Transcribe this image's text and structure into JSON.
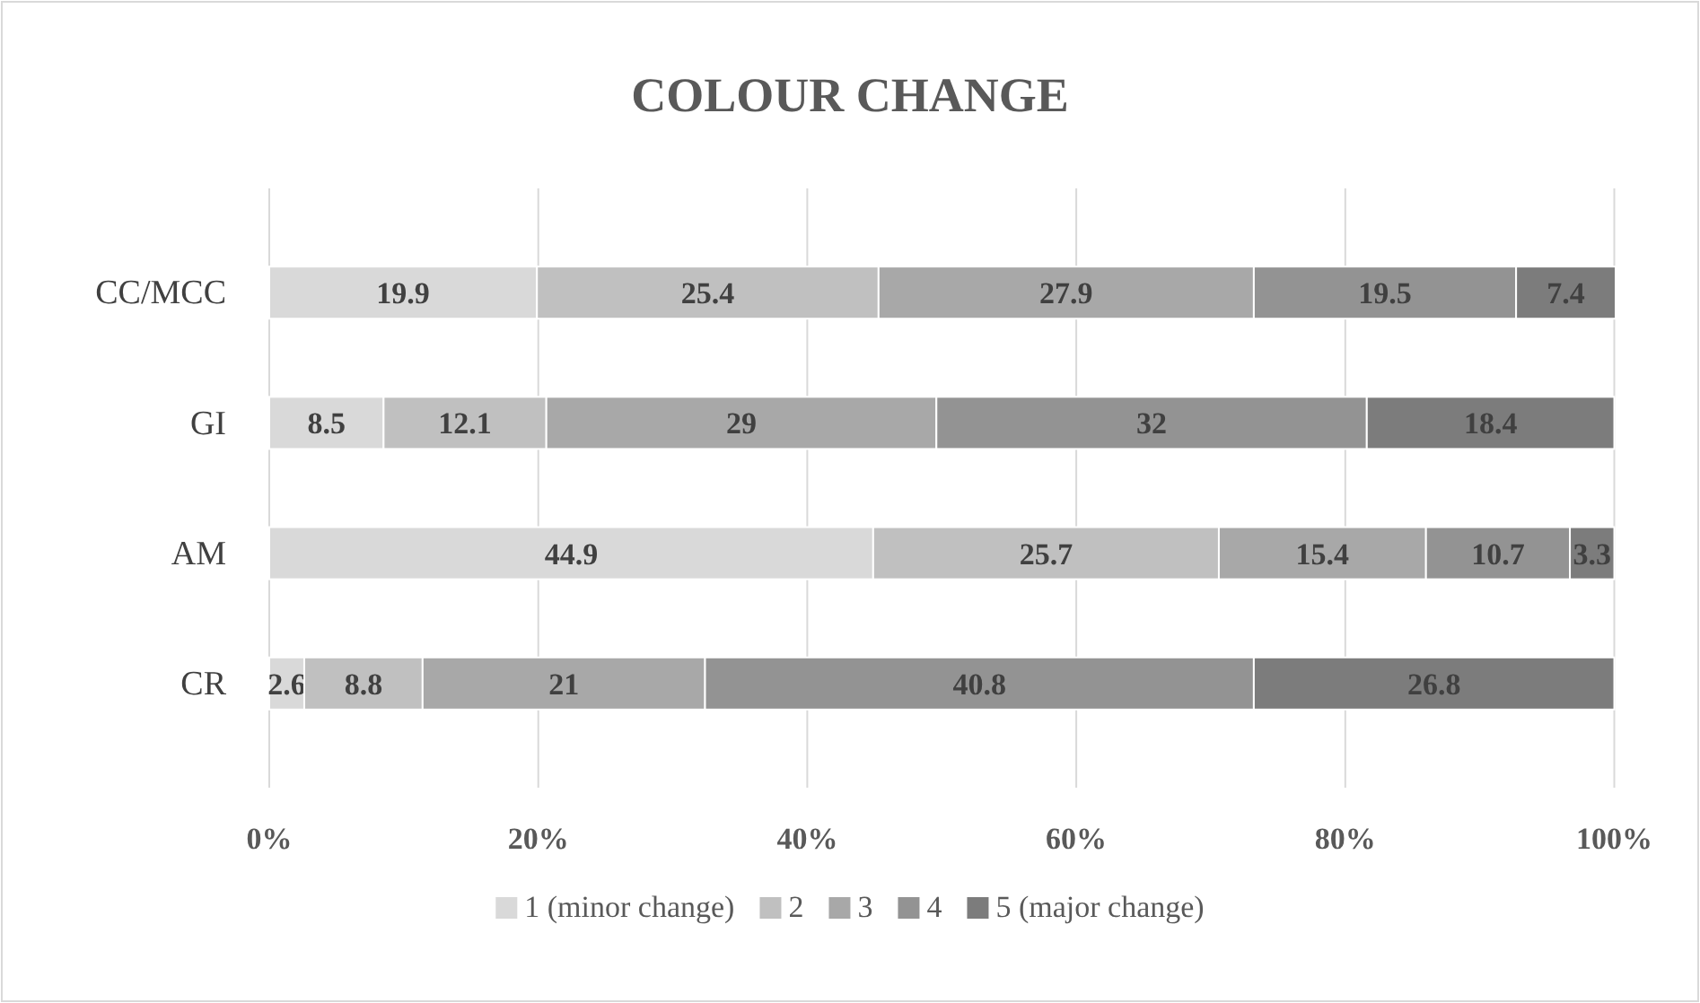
{
  "chart_data": {
    "type": "bar",
    "title": "COLOUR CHANGE",
    "orientation": "horizontal",
    "stacked": true,
    "categories": [
      "CC/MCC",
      "GI",
      "AM",
      "CR"
    ],
    "series": [
      {
        "name": "1 (minor change)",
        "color": "#d9d9d9",
        "values": [
          19.9,
          8.5,
          44.9,
          2.6
        ]
      },
      {
        "name": "2",
        "color": "#c0c0c0",
        "values": [
          25.4,
          12.1,
          25.7,
          8.8
        ]
      },
      {
        "name": "3",
        "color": "#a8a8a8",
        "values": [
          27.9,
          29,
          15.4,
          21
        ]
      },
      {
        "name": "4",
        "color": "#939393",
        "values": [
          19.5,
          32,
          10.7,
          40.8
        ]
      },
      {
        "name": "5 (major change)",
        "color": "#7c7c7c",
        "values": [
          7.4,
          18.4,
          3.3,
          26.8
        ]
      }
    ],
    "xlim": [
      0,
      100.1
    ],
    "xticks": [
      {
        "value": 0,
        "label": "0%"
      },
      {
        "value": 20,
        "label": "20%"
      },
      {
        "value": 40,
        "label": "40%"
      },
      {
        "value": 60,
        "label": "60%"
      },
      {
        "value": 80,
        "label": "80%"
      },
      {
        "value": 100,
        "label": "100%"
      }
    ],
    "grid": "x",
    "data_labels": true,
    "legend": "bottom"
  }
}
